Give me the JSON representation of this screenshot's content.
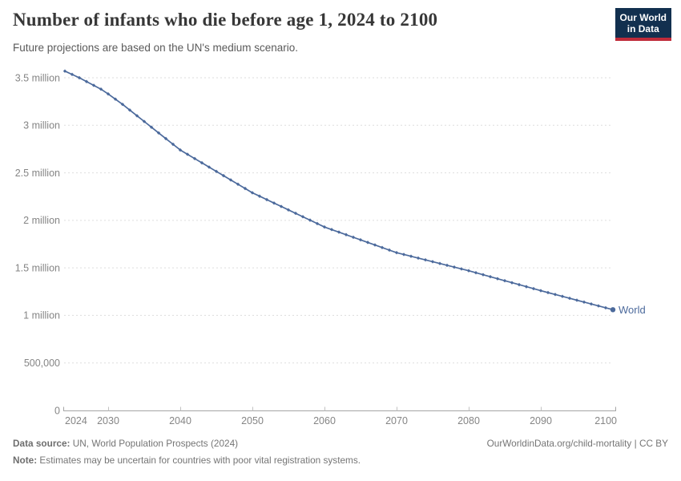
{
  "header": {
    "title": "Number of infants who die before age 1, 2024 to 2100",
    "subtitle": "Future projections are based on the UN's medium scenario.",
    "logo_line1": "Our World",
    "logo_line2": "in Data"
  },
  "colors": {
    "line": "#4c6a9c",
    "axis_label": "#858585",
    "gridline": "#dddddd",
    "axis": "#a5a5a5",
    "tick": "#c2c2c2",
    "logo_bg": "#12304f",
    "logo_accent": "#bf2b3a"
  },
  "chart_data": {
    "type": "line",
    "title": "Number of infants who die before age 1, 2024 to 2100",
    "subtitle": "Future projections are based on the UN's medium scenario.",
    "xlabel": "",
    "ylabel": "",
    "grid": "horizontal-dashed",
    "legend_position": "end-of-line-label",
    "start_year": 2024,
    "end_year": 2100,
    "xlim": [
      2024,
      2100
    ],
    "ylim": [
      0,
      3700000
    ],
    "unit": "million",
    "yticks": [
      {
        "value": 3.5,
        "label": "3.5 million"
      },
      {
        "value": 3.0,
        "label": "3 million"
      },
      {
        "value": 2.5,
        "label": "2.5 million"
      },
      {
        "value": 2.0,
        "label": "2 million"
      },
      {
        "value": 1.5,
        "label": "1.5 million"
      },
      {
        "value": 1.0,
        "label": "1 million"
      },
      {
        "value": 0.5,
        "label": "500,000"
      },
      {
        "value": 0,
        "label": "0"
      }
    ],
    "xticks": [
      {
        "year": 2024,
        "label": "2024",
        "align": "start"
      },
      {
        "year": 2030,
        "label": "2030"
      },
      {
        "year": 2040,
        "label": "2040"
      },
      {
        "year": 2050,
        "label": "2050"
      },
      {
        "year": 2060,
        "label": "2060"
      },
      {
        "year": 2070,
        "label": "2070"
      },
      {
        "year": 2080,
        "label": "2080"
      },
      {
        "year": 2090,
        "label": "2090"
      },
      {
        "year": 2100,
        "label": "2100",
        "align": "end"
      }
    ],
    "series": [
      {
        "name": "World",
        "values": [
          3.57,
          3.535,
          3.5,
          3.46,
          3.42,
          3.38,
          3.33,
          3.275,
          3.22,
          3.16,
          3.1,
          3.04,
          2.98,
          2.92,
          2.86,
          2.8,
          2.74,
          2.695,
          2.65,
          2.605,
          2.56,
          2.515,
          2.47,
          2.425,
          2.38,
          2.335,
          2.29,
          2.254,
          2.218,
          2.182,
          2.146,
          2.11,
          2.074,
          2.038,
          2.002,
          1.966,
          1.93,
          1.903,
          1.876,
          1.849,
          1.822,
          1.795,
          1.768,
          1.741,
          1.714,
          1.687,
          1.66,
          1.641,
          1.622,
          1.603,
          1.584,
          1.565,
          1.546,
          1.527,
          1.508,
          1.489,
          1.47,
          1.449,
          1.428,
          1.407,
          1.386,
          1.365,
          1.344,
          1.323,
          1.302,
          1.281,
          1.26,
          1.24,
          1.22,
          1.2,
          1.18,
          1.16,
          1.14,
          1.12,
          1.1,
          1.08,
          1.06
        ]
      }
    ]
  },
  "footer": {
    "source_label": "Data source:",
    "source_text": " UN, World Population Prospects (2024)",
    "link": "OurWorldinData.org/child-mortality | CC BY",
    "note_label": "Note:",
    "note_text": " Estimates may be uncertain for countries with poor vital registration systems."
  }
}
